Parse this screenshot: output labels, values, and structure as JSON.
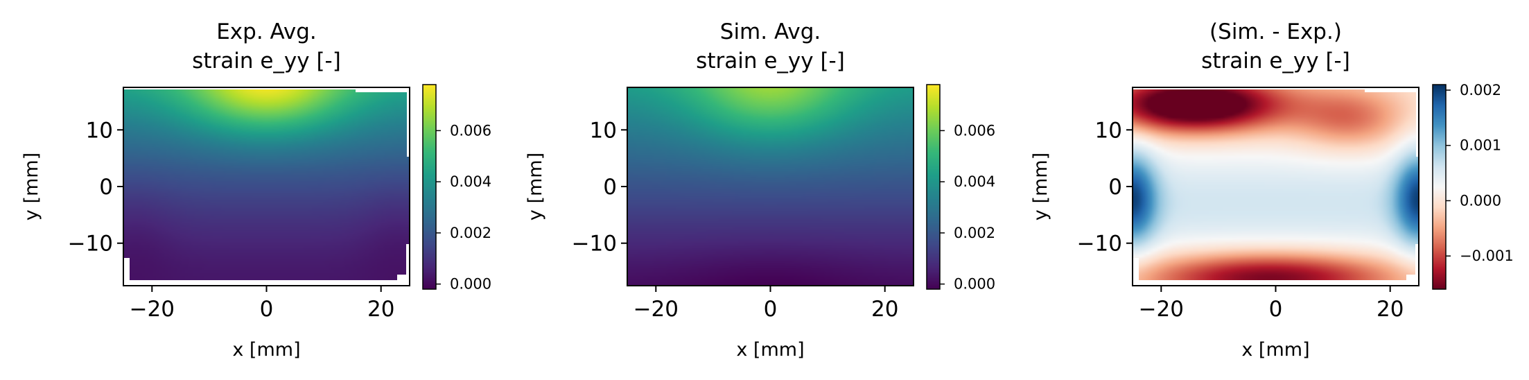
{
  "chart_data": [
    {
      "type": "heatmap",
      "title_lines": [
        "Exp. Avg.",
        "strain e_yy [-]"
      ],
      "xlabel": "x [mm]",
      "ylabel": "y [mm]",
      "xlim": [
        -25,
        25
      ],
      "ylim": [
        -17.5,
        17.5
      ],
      "xticks": [
        {
          "value": -20,
          "label": "−20"
        },
        {
          "value": 0,
          "label": "0"
        },
        {
          "value": 20,
          "label": "20"
        }
      ],
      "yticks": [
        {
          "value": 10,
          "label": "10"
        },
        {
          "value": 0,
          "label": "0"
        },
        {
          "value": -10,
          "label": "−10"
        }
      ],
      "colormap": "viridis",
      "clim": [
        -0.0002,
        0.0078
      ],
      "colorbar_ticks": [
        {
          "value": 0.0,
          "label": "0.000"
        },
        {
          "value": 0.002,
          "label": "0.002"
        },
        {
          "value": 0.004,
          "label": "0.004"
        },
        {
          "value": 0.006,
          "label": "0.006"
        }
      ],
      "field": {
        "model": "exp",
        "peak": 0.0075,
        "peak_at": [
          0,
          17
        ],
        "min": 0.0,
        "min_region": "lower corners"
      }
    },
    {
      "type": "heatmap",
      "title_lines": [
        "Sim. Avg.",
        "strain e_yy [-]"
      ],
      "xlabel": "x [mm]",
      "ylabel": "y [mm]",
      "xlim": [
        -25,
        25
      ],
      "ylim": [
        -17.5,
        17.5
      ],
      "xticks": [
        {
          "value": -20,
          "label": "−20"
        },
        {
          "value": 0,
          "label": "0"
        },
        {
          "value": 20,
          "label": "20"
        }
      ],
      "yticks": [
        {
          "value": 10,
          "label": "10"
        },
        {
          "value": 0,
          "label": "0"
        },
        {
          "value": -10,
          "label": "−10"
        }
      ],
      "colormap": "viridis",
      "clim": [
        -0.0002,
        0.0078
      ],
      "colorbar_ticks": [
        {
          "value": 0.0,
          "label": "0.000"
        },
        {
          "value": 0.002,
          "label": "0.002"
        },
        {
          "value": 0.004,
          "label": "0.004"
        },
        {
          "value": 0.006,
          "label": "0.006"
        }
      ],
      "field": {
        "model": "sim",
        "peak": 0.0068,
        "peak_at": [
          0,
          17.5
        ],
        "min": 0.0,
        "min_at": [
          0,
          -17.5
        ]
      }
    },
    {
      "type": "heatmap",
      "title_lines": [
        "(Sim. - Exp.)",
        "strain e_yy [-]"
      ],
      "xlabel": "x [mm]",
      "ylabel": "y [mm]",
      "xlim": [
        -25,
        25
      ],
      "ylim": [
        -17.5,
        17.5
      ],
      "xticks": [
        {
          "value": -20,
          "label": "−20"
        },
        {
          "value": 0,
          "label": "0"
        },
        {
          "value": 20,
          "label": "20"
        }
      ],
      "yticks": [
        {
          "value": 10,
          "label": "10"
        },
        {
          "value": 0,
          "label": "0"
        },
        {
          "value": -10,
          "label": "−10"
        }
      ],
      "colormap": "RdBu",
      "clim": [
        -0.0016,
        0.0021
      ],
      "colorbar_ticks": [
        {
          "value": -0.001,
          "label": "−0.001"
        },
        {
          "value": 0.0,
          "label": "0.000"
        },
        {
          "value": 0.001,
          "label": "0.001"
        },
        {
          "value": 0.002,
          "label": "0.002"
        }
      ],
      "field": {
        "model": "diff",
        "max": 0.0021,
        "max_at": [
          -25,
          -2.5
        ],
        "min": -0.0016,
        "min_at": [
          -15,
          15
        ]
      }
    }
  ]
}
